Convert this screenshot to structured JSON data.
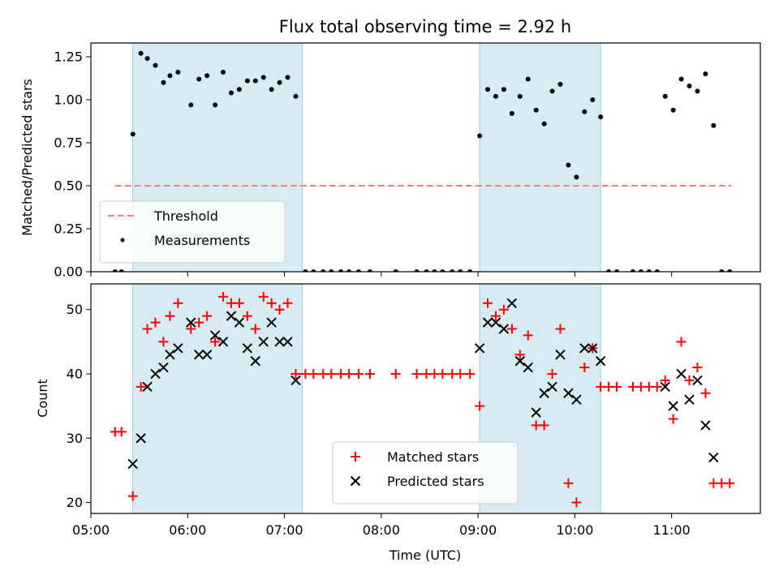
{
  "title": "Flux total observing time = 2.92 h",
  "chart_data": [
    {
      "type": "scatter",
      "panel": "top",
      "ylabel": "Matched/Predicted stars",
      "xlabel": "",
      "xlim": [
        "05:00",
        "11:55"
      ],
      "ylim": [
        0,
        1.33
      ],
      "yticks": [
        0.0,
        0.25,
        0.5,
        0.75,
        1.0,
        1.25
      ],
      "ytick_labels": [
        "0.00",
        "0.25",
        "0.50",
        "0.75",
        "1.00",
        "1.25"
      ],
      "shaded_intervals": [
        [
          "05:26",
          "07:11"
        ],
        [
          "09:01",
          "10:16"
        ]
      ],
      "legend_position": "lower-left",
      "series": [
        {
          "name": "Threshold",
          "kind": "dashed-line",
          "color": "#ff7f7f",
          "points": [
            [
              "05:15",
              0.5
            ],
            [
              "11:37",
              0.5
            ]
          ]
        },
        {
          "name": "Measurements",
          "kind": "dot",
          "color": "#000000",
          "points": [
            [
              "05:15",
              0.0
            ],
            [
              "05:19",
              0.0
            ],
            [
              "05:26",
              0.8
            ],
            [
              "05:31",
              1.27
            ],
            [
              "05:35",
              1.24
            ],
            [
              "05:40",
              1.2
            ],
            [
              "05:45",
              1.1
            ],
            [
              "05:49",
              1.14
            ],
            [
              "05:54",
              1.16
            ],
            [
              "06:02",
              0.97
            ],
            [
              "06:07",
              1.12
            ],
            [
              "06:12",
              1.14
            ],
            [
              "06:17",
              0.97
            ],
            [
              "06:22",
              1.16
            ],
            [
              "06:27",
              1.04
            ],
            [
              "06:32",
              1.06
            ],
            [
              "06:37",
              1.11
            ],
            [
              "06:42",
              1.11
            ],
            [
              "06:47",
              1.13
            ],
            [
              "06:52",
              1.06
            ],
            [
              "06:57",
              1.1
            ],
            [
              "07:02",
              1.13
            ],
            [
              "07:07",
              1.02
            ],
            [
              "07:13",
              0.0
            ],
            [
              "07:18",
              0.0
            ],
            [
              "07:24",
              0.0
            ],
            [
              "07:29",
              0.0
            ],
            [
              "07:35",
              0.0
            ],
            [
              "07:40",
              0.0
            ],
            [
              "07:46",
              0.0
            ],
            [
              "07:53",
              0.0
            ],
            [
              "08:09",
              0.0
            ],
            [
              "08:22",
              0.0
            ],
            [
              "08:28",
              0.0
            ],
            [
              "08:33",
              0.0
            ],
            [
              "08:38",
              0.0
            ],
            [
              "08:44",
              0.0
            ],
            [
              "08:49",
              0.0
            ],
            [
              "08:55",
              0.0
            ],
            [
              "09:01",
              0.79
            ],
            [
              "09:06",
              1.06
            ],
            [
              "09:11",
              1.02
            ],
            [
              "09:16",
              1.06
            ],
            [
              "09:21",
              0.92
            ],
            [
              "09:26",
              1.02
            ],
            [
              "09:31",
              1.12
            ],
            [
              "09:36",
              0.94
            ],
            [
              "09:41",
              0.86
            ],
            [
              "09:46",
              1.05
            ],
            [
              "09:51",
              1.09
            ],
            [
              "09:56",
              0.62
            ],
            [
              "10:01",
              0.55
            ],
            [
              "10:06",
              0.93
            ],
            [
              "10:11",
              1.0
            ],
            [
              "10:16",
              0.9
            ],
            [
              "10:21",
              0.0
            ],
            [
              "10:26",
              0.0
            ],
            [
              "10:36",
              0.0
            ],
            [
              "10:41",
              0.0
            ],
            [
              "10:46",
              0.0
            ],
            [
              "10:51",
              0.0
            ],
            [
              "10:56",
              1.02
            ],
            [
              "11:01",
              0.94
            ],
            [
              "11:06",
              1.12
            ],
            [
              "11:11",
              1.08
            ],
            [
              "11:16",
              1.05
            ],
            [
              "11:21",
              1.15
            ],
            [
              "11:26",
              0.85
            ],
            [
              "11:31",
              0.0
            ],
            [
              "11:36",
              0.0
            ]
          ]
        }
      ]
    },
    {
      "type": "scatter",
      "panel": "bottom",
      "ylabel": "Count",
      "xlabel": "Time (UTC)",
      "xlim": [
        "05:00",
        "11:55"
      ],
      "ylim": [
        18.3,
        54
      ],
      "yticks": [
        20,
        30,
        40,
        50
      ],
      "ytick_labels": [
        "20",
        "30",
        "40",
        "50"
      ],
      "xticks": [
        "05:00",
        "06:00",
        "07:00",
        "08:00",
        "09:00",
        "10:00",
        "11:00"
      ],
      "xtick_labels": [
        "05:00",
        "06:00",
        "07:00",
        "08:00",
        "09:00",
        "10:00",
        "11:00"
      ],
      "shaded_intervals": [
        [
          "05:26",
          "07:11"
        ],
        [
          "09:01",
          "10:16"
        ]
      ],
      "legend_position": "lower-center",
      "series": [
        {
          "name": "Matched stars",
          "kind": "plus",
          "color": "#ff0000",
          "points": [
            [
              "05:15",
              31
            ],
            [
              "05:19",
              31
            ],
            [
              "05:26",
              21
            ],
            [
              "05:31",
              38
            ],
            [
              "05:35",
              47
            ],
            [
              "05:40",
              48
            ],
            [
              "05:45",
              45
            ],
            [
              "05:49",
              49
            ],
            [
              "05:54",
              51
            ],
            [
              "06:02",
              47
            ],
            [
              "06:07",
              48
            ],
            [
              "06:12",
              49
            ],
            [
              "06:17",
              45
            ],
            [
              "06:22",
              52
            ],
            [
              "06:27",
              51
            ],
            [
              "06:32",
              51
            ],
            [
              "06:37",
              49
            ],
            [
              "06:42",
              47
            ],
            [
              "06:47",
              52
            ],
            [
              "06:52",
              51
            ],
            [
              "06:57",
              50
            ],
            [
              "07:02",
              51
            ],
            [
              "07:07",
              40
            ],
            [
              "07:13",
              40
            ],
            [
              "07:18",
              40
            ],
            [
              "07:24",
              40
            ],
            [
              "07:29",
              40
            ],
            [
              "07:35",
              40
            ],
            [
              "07:40",
              40
            ],
            [
              "07:46",
              40
            ],
            [
              "07:53",
              40
            ],
            [
              "08:09",
              40
            ],
            [
              "08:22",
              40
            ],
            [
              "08:28",
              40
            ],
            [
              "08:33",
              40
            ],
            [
              "08:38",
              40
            ],
            [
              "08:44",
              40
            ],
            [
              "08:49",
              40
            ],
            [
              "08:55",
              40
            ],
            [
              "09:01",
              35
            ],
            [
              "09:06",
              51
            ],
            [
              "09:11",
              49
            ],
            [
              "09:16",
              50
            ],
            [
              "09:21",
              47
            ],
            [
              "09:26",
              43
            ],
            [
              "09:31",
              46
            ],
            [
              "09:36",
              32
            ],
            [
              "09:41",
              32
            ],
            [
              "09:46",
              40
            ],
            [
              "09:51",
              47
            ],
            [
              "09:56",
              23
            ],
            [
              "10:01",
              20
            ],
            [
              "10:06",
              41
            ],
            [
              "10:11",
              44
            ],
            [
              "10:16",
              38
            ],
            [
              "10:21",
              38
            ],
            [
              "10:26",
              38
            ],
            [
              "10:36",
              38
            ],
            [
              "10:41",
              38
            ],
            [
              "10:46",
              38
            ],
            [
              "10:51",
              38
            ],
            [
              "10:56",
              39
            ],
            [
              "11:01",
              33
            ],
            [
              "11:06",
              45
            ],
            [
              "11:11",
              39
            ],
            [
              "11:16",
              41
            ],
            [
              "11:21",
              37
            ],
            [
              "11:26",
              23
            ],
            [
              "11:31",
              23
            ],
            [
              "11:36",
              23
            ]
          ]
        },
        {
          "name": "Predicted stars",
          "kind": "cross",
          "color": "#000000",
          "points": [
            [
              "05:26",
              26
            ],
            [
              "05:31",
              30
            ],
            [
              "05:35",
              38
            ],
            [
              "05:40",
              40
            ],
            [
              "05:45",
              41
            ],
            [
              "05:49",
              43
            ],
            [
              "05:54",
              44
            ],
            [
              "06:02",
              48
            ],
            [
              "06:07",
              43
            ],
            [
              "06:12",
              43
            ],
            [
              "06:17",
              46
            ],
            [
              "06:22",
              45
            ],
            [
              "06:27",
              49
            ],
            [
              "06:32",
              48
            ],
            [
              "06:37",
              44
            ],
            [
              "06:42",
              42
            ],
            [
              "06:47",
              45
            ],
            [
              "06:52",
              48
            ],
            [
              "06:57",
              45
            ],
            [
              "07:02",
              45
            ],
            [
              "07:07",
              39
            ],
            [
              "09:01",
              44
            ],
            [
              "09:06",
              48
            ],
            [
              "09:11",
              48
            ],
            [
              "09:16",
              47
            ],
            [
              "09:21",
              51
            ],
            [
              "09:26",
              42
            ],
            [
              "09:31",
              41
            ],
            [
              "09:36",
              34
            ],
            [
              "09:41",
              37
            ],
            [
              "09:46",
              38
            ],
            [
              "09:51",
              43
            ],
            [
              "09:56",
              37
            ],
            [
              "10:01",
              36
            ],
            [
              "10:06",
              44
            ],
            [
              "10:11",
              44
            ],
            [
              "10:16",
              42
            ],
            [
              "10:56",
              38
            ],
            [
              "11:01",
              35
            ],
            [
              "11:06",
              40
            ],
            [
              "11:11",
              36
            ],
            [
              "11:16",
              39
            ],
            [
              "11:21",
              32
            ],
            [
              "11:26",
              27
            ]
          ]
        }
      ]
    }
  ]
}
